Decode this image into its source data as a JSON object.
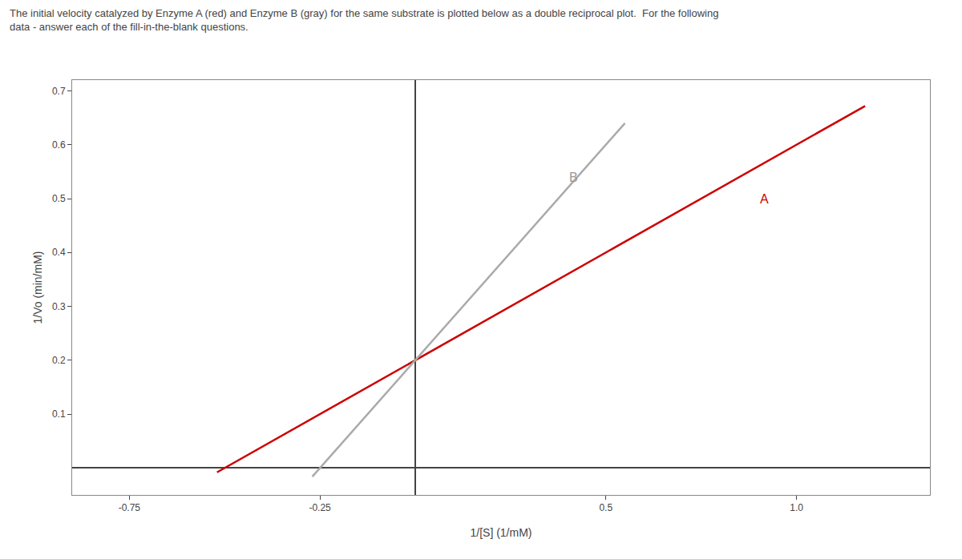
{
  "chart_data": {
    "type": "line",
    "title": "The initial velocity catalyzed by Enzyme A (red) and Enzyme B (gray) for the same substrate is plotted below as a double reciprocal plot.  For the following",
    "subtitle": "data - answer each of the fill-in-the-blank questions.",
    "xlabel": "1/[S] (1/mM)",
    "ylabel": "1/Vo (min/mM)",
    "series": [
      {
        "color": "#cc0000",
        "x": [
          -0.52,
          1.18
        ],
        "values": [
          -0.008,
          0.672
        ]
      },
      {
        "color": "#aaaaaa",
        "x": [
          -0.27,
          0.55
        ],
        "values": [
          -0.016,
          0.64
        ]
      }
    ],
    "xlim": [
      -0.9,
      1.35
    ],
    "xticks": [
      -0.75,
      -0.25,
      0.5,
      {
        "value": 1.0,
        "label": "1.0"
      }
    ],
    "ylim": [
      -0.05,
      0.72
    ],
    "yticks": [
      0.1,
      0.2,
      0.3,
      0.4,
      0.5,
      0.6,
      0.7
    ],
    "annotations": [
      {
        "text": "A",
        "x": 0.9,
        "y": 0.5,
        "color": "#cc0000"
      },
      {
        "text": "B",
        "x": 0.4,
        "y": 0.54,
        "color": "#999999"
      }
    ],
    "grid": false
  }
}
